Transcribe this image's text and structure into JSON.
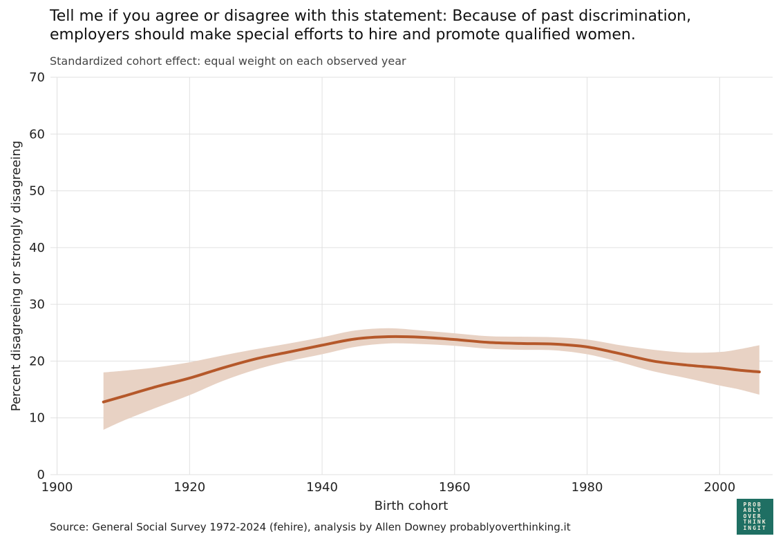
{
  "title": "Tell me if you agree or disagree with this statement: Because of past discrimination, employers should make special efforts to hire and promote qualified women.",
  "subtitle": "Standardized cohort effect: equal weight on each observed year",
  "source": "Source: General Social Survey 1972-2024 (fehire), analysis by Allen Downey probablyoverthinking.it",
  "logo_text": "PROB\nABLY\nOVER\nTHINK\nINGIT",
  "chart_data": {
    "type": "line",
    "xlabel": "Birth cohort",
    "ylabel": "Percent disagreeing or strongly disagreeing",
    "xlim": [
      1899,
      2008
    ],
    "ylim": [
      0,
      70
    ],
    "xticks": [
      1900,
      1920,
      1940,
      1960,
      1980,
      2000
    ],
    "yticks": [
      0,
      10,
      20,
      30,
      40,
      50,
      60,
      70
    ],
    "grid": true,
    "colors": {
      "line": "#b5582a",
      "band": "#e8d2c4",
      "grid": "#e0e0e0"
    },
    "series": [
      {
        "x": [
          1907,
          1910,
          1915,
          1920,
          1925,
          1930,
          1935,
          1940,
          1945,
          1950,
          1955,
          1960,
          1965,
          1970,
          1975,
          1980,
          1985,
          1990,
          1995,
          2000,
          2003,
          2006
        ],
        "y": [
          12.8,
          13.8,
          15.5,
          17.0,
          18.8,
          20.4,
          21.6,
          22.8,
          23.9,
          24.3,
          24.2,
          23.8,
          23.3,
          23.1,
          23.0,
          22.5,
          21.3,
          20.0,
          19.3,
          18.8,
          18.4,
          18.1
        ],
        "lower": [
          7.9,
          9.5,
          11.8,
          14.0,
          16.5,
          18.5,
          20.0,
          21.2,
          22.5,
          23.1,
          23.0,
          22.7,
          22.2,
          22.0,
          21.9,
          21.2,
          19.8,
          18.2,
          17.0,
          15.7,
          15.0,
          14.1
        ],
        "upper": [
          18.0,
          18.3,
          18.9,
          19.8,
          21.0,
          22.1,
          23.1,
          24.2,
          25.4,
          25.8,
          25.4,
          24.9,
          24.4,
          24.3,
          24.2,
          23.8,
          22.8,
          22.0,
          21.5,
          21.6,
          22.1,
          22.8
        ]
      }
    ]
  }
}
